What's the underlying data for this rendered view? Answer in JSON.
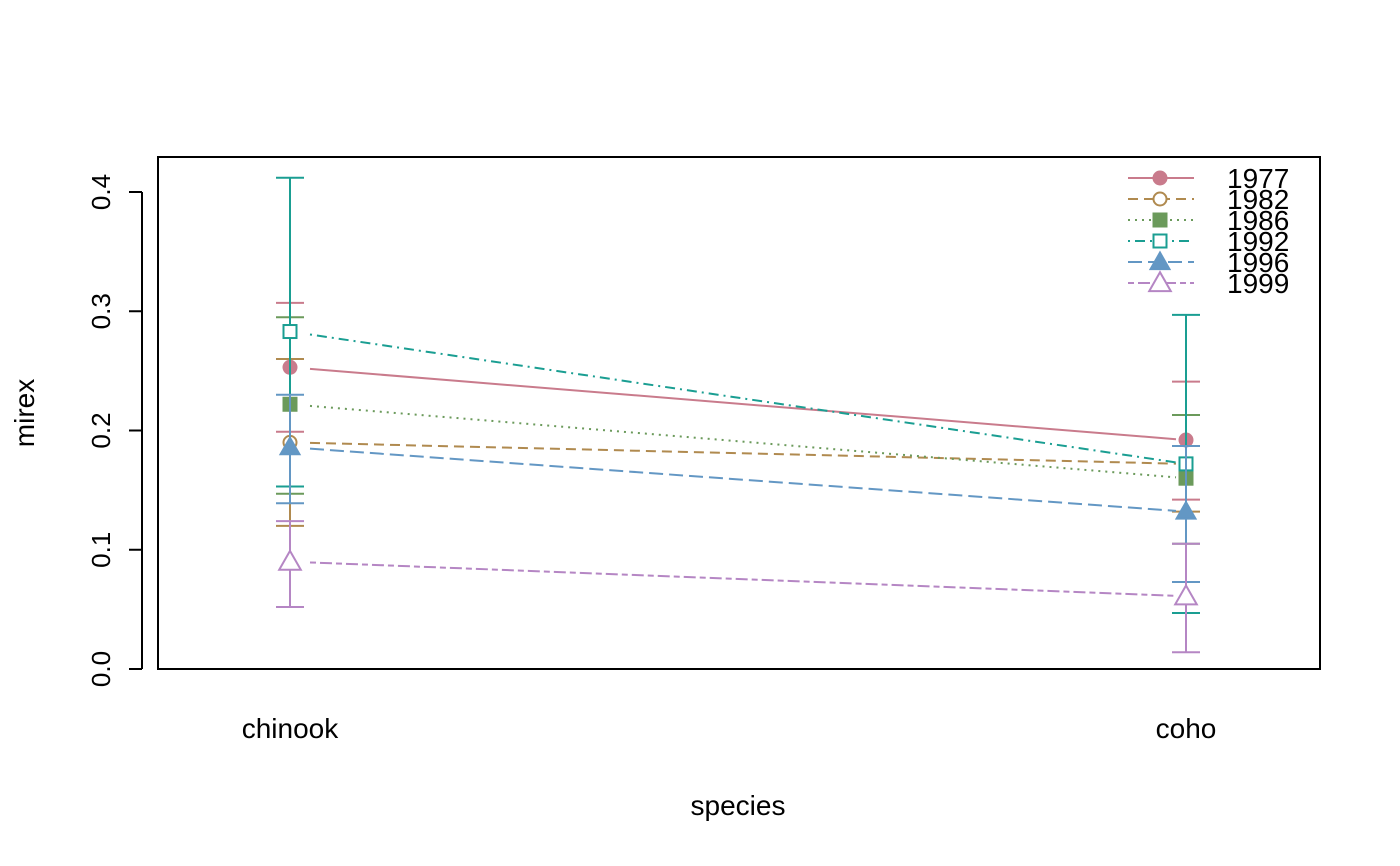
{
  "chart_data": {
    "type": "line",
    "title": "",
    "xlabel": "species",
    "ylabel": "mirex",
    "categories": [
      "chinook",
      "coho"
    ],
    "ylim": [
      0,
      0.4
    ],
    "yticks": [
      "0.0",
      "0.1",
      "0.2",
      "0.3",
      "0.4"
    ],
    "grid": false,
    "legend_position": "top-right",
    "series": [
      {
        "name": "1977",
        "color": "#c97b8c",
        "marker": "filled-circle",
        "line": "solid",
        "values": [
          0.253,
          0.192
        ],
        "lower": [
          0.199,
          0.142
        ],
        "upper": [
          0.307,
          0.241
        ]
      },
      {
        "name": "1982",
        "color": "#b08a4f",
        "marker": "open-circle",
        "line": "dashed",
        "values": [
          0.19,
          0.172
        ],
        "lower": [
          0.12,
          0.132
        ],
        "upper": [
          0.26,
          0.213
        ]
      },
      {
        "name": "1986",
        "color": "#6b9a5b",
        "marker": "filled-square",
        "line": "dotted",
        "values": [
          0.222,
          0.16
        ],
        "lower": [
          0.147,
          0.105
        ],
        "upper": [
          0.295,
          0.213
        ]
      },
      {
        "name": "1992",
        "color": "#1a9e92",
        "marker": "open-square",
        "line": "dotdash",
        "values": [
          0.283,
          0.172
        ],
        "lower": [
          0.153,
          0.047
        ],
        "upper": [
          0.412,
          0.297
        ]
      },
      {
        "name": "1996",
        "color": "#6397c4",
        "marker": "filled-triangle",
        "line": "longdash",
        "values": [
          0.186,
          0.132
        ],
        "lower": [
          0.139,
          0.073
        ],
        "upper": [
          0.23,
          0.187
        ]
      },
      {
        "name": "1999",
        "color": "#b586c4",
        "marker": "open-triangle",
        "line": "twodash",
        "values": [
          0.09,
          0.061
        ],
        "lower": [
          0.052,
          0.014
        ],
        "upper": [
          0.124,
          0.105
        ]
      }
    ]
  }
}
